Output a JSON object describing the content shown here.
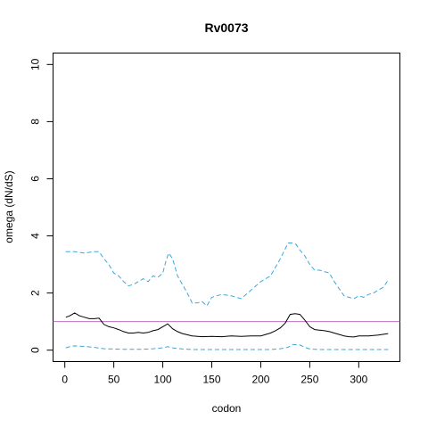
{
  "chart_data": {
    "type": "line",
    "title": "Rv0073",
    "xlabel": "codon",
    "ylabel": "omega (dN/dS)",
    "xlim": [
      -12,
      342
    ],
    "ylim": [
      -0.4,
      10.4
    ],
    "x_ticks": [
      0,
      50,
      100,
      150,
      200,
      250,
      300
    ],
    "y_ticks": [
      0,
      2,
      4,
      6,
      8,
      10
    ],
    "grid": false,
    "legend": "none",
    "reference_line": {
      "y": 1,
      "color": "#bf6fbf"
    },
    "series": [
      {
        "style": "solid",
        "color": "#000000",
        "x": [
          1,
          5,
          10,
          15,
          20,
          25,
          30,
          35,
          40,
          45,
          50,
          55,
          60,
          65,
          70,
          75,
          80,
          85,
          90,
          95,
          100,
          105,
          110,
          115,
          120,
          130,
          140,
          150,
          160,
          170,
          180,
          190,
          200,
          210,
          215,
          220,
          225,
          230,
          235,
          240,
          245,
          250,
          255,
          260,
          265,
          270,
          275,
          280,
          285,
          290,
          295,
          300,
          310,
          320,
          330
        ],
        "y": [
          1.15,
          1.2,
          1.3,
          1.2,
          1.15,
          1.1,
          1.1,
          1.12,
          0.9,
          0.82,
          0.78,
          0.72,
          0.65,
          0.6,
          0.6,
          0.62,
          0.6,
          0.62,
          0.68,
          0.72,
          0.82,
          0.92,
          0.75,
          0.65,
          0.58,
          0.5,
          0.47,
          0.48,
          0.47,
          0.5,
          0.48,
          0.5,
          0.5,
          0.6,
          0.68,
          0.78,
          0.95,
          1.25,
          1.28,
          1.25,
          1.05,
          0.82,
          0.72,
          0.7,
          0.68,
          0.65,
          0.6,
          0.55,
          0.5,
          0.47,
          0.46,
          0.5,
          0.5,
          0.53,
          0.58
        ]
      },
      {
        "style": "dashed",
        "color": "#3fa6d9",
        "x": [
          1,
          10,
          20,
          30,
          35,
          40,
          45,
          50,
          55,
          60,
          65,
          70,
          75,
          80,
          85,
          90,
          95,
          100,
          103,
          106,
          110,
          115,
          120,
          125,
          130,
          135,
          140,
          145,
          150,
          155,
          160,
          170,
          180,
          190,
          200,
          205,
          210,
          215,
          220,
          225,
          228,
          232,
          236,
          240,
          245,
          250,
          255,
          260,
          265,
          270,
          275,
          280,
          285,
          290,
          295,
          300,
          305,
          310,
          315,
          320,
          325,
          330
        ],
        "y": [
          3.45,
          3.45,
          3.4,
          3.45,
          3.45,
          3.2,
          3.0,
          2.7,
          2.6,
          2.4,
          2.25,
          2.3,
          2.4,
          2.5,
          2.4,
          2.6,
          2.55,
          2.7,
          3.1,
          3.4,
          3.2,
          2.6,
          2.3,
          2.0,
          1.65,
          1.65,
          1.7,
          1.55,
          1.85,
          1.9,
          1.95,
          1.9,
          1.8,
          2.1,
          2.4,
          2.5,
          2.6,
          2.9,
          3.2,
          3.55,
          3.75,
          3.75,
          3.7,
          3.5,
          3.3,
          3.0,
          2.8,
          2.8,
          2.75,
          2.7,
          2.4,
          2.15,
          1.9,
          1.85,
          1.8,
          1.9,
          1.85,
          1.95,
          2.0,
          2.1,
          2.2,
          2.45
        ]
      },
      {
        "style": "dashed",
        "color": "#3fa6d9",
        "x": [
          1,
          5,
          10,
          20,
          30,
          40,
          50,
          60,
          70,
          80,
          90,
          100,
          105,
          110,
          120,
          130,
          150,
          170,
          190,
          210,
          220,
          228,
          232,
          240,
          245,
          250,
          260,
          280,
          300,
          320,
          330
        ],
        "y": [
          0.08,
          0.12,
          0.15,
          0.13,
          0.1,
          0.05,
          0.04,
          0.03,
          0.03,
          0.03,
          0.05,
          0.08,
          0.12,
          0.08,
          0.04,
          0.02,
          0.02,
          0.02,
          0.02,
          0.02,
          0.05,
          0.1,
          0.2,
          0.18,
          0.1,
          0.04,
          0.02,
          0.02,
          0.02,
          0.02,
          0.02
        ]
      }
    ]
  }
}
